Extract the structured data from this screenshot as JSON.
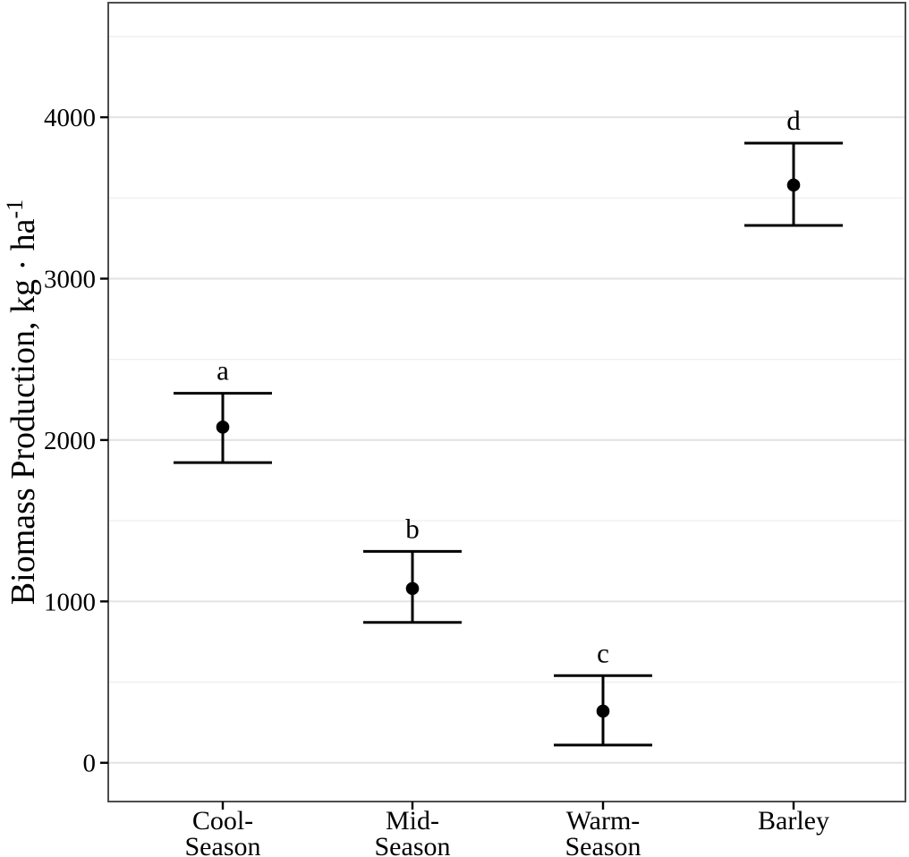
{
  "chart_data": {
    "type": "scatter",
    "variant": "category-means-with-errorbars",
    "title": "",
    "xlabel": "",
    "ylabel": "Biomass Production, kg · ha⁻¹",
    "ylabel_base": "Biomass Production, kg · ha",
    "ylabel_superscript": "-1",
    "categories": [
      "Cool-Season",
      "Mid-Season",
      "Warm-Season",
      "Barley"
    ],
    "category_label_lines": [
      [
        "Cool-",
        "Season"
      ],
      [
        "Mid-",
        "Season"
      ],
      [
        "Warm-",
        "Season"
      ],
      [
        "Barley"
      ]
    ],
    "series": [
      {
        "name": "Biomass Production",
        "means": [
          2080,
          1080,
          320,
          3580
        ],
        "ci_lower": [
          1860,
          870,
          110,
          3330
        ],
        "ci_upper": [
          2290,
          1310,
          540,
          3840
        ]
      }
    ],
    "significance_letters": [
      "a",
      "b",
      "c",
      "d"
    ],
    "ylim": [
      -240,
      4710
    ],
    "yticks": [
      0,
      1000,
      2000,
      3000,
      4000
    ],
    "yticks_minor": [
      500,
      1500,
      2500,
      3500,
      4500
    ],
    "grid": "horizontal",
    "legend": "none",
    "colors": {
      "point": "#000000",
      "errorbar": "#000000",
      "grid_major": "#e4e4e4",
      "grid_minor": "#f0f0f0",
      "panel_border": "#4d4d4d",
      "panel_background": "#ffffff",
      "text": "#000000"
    }
  }
}
